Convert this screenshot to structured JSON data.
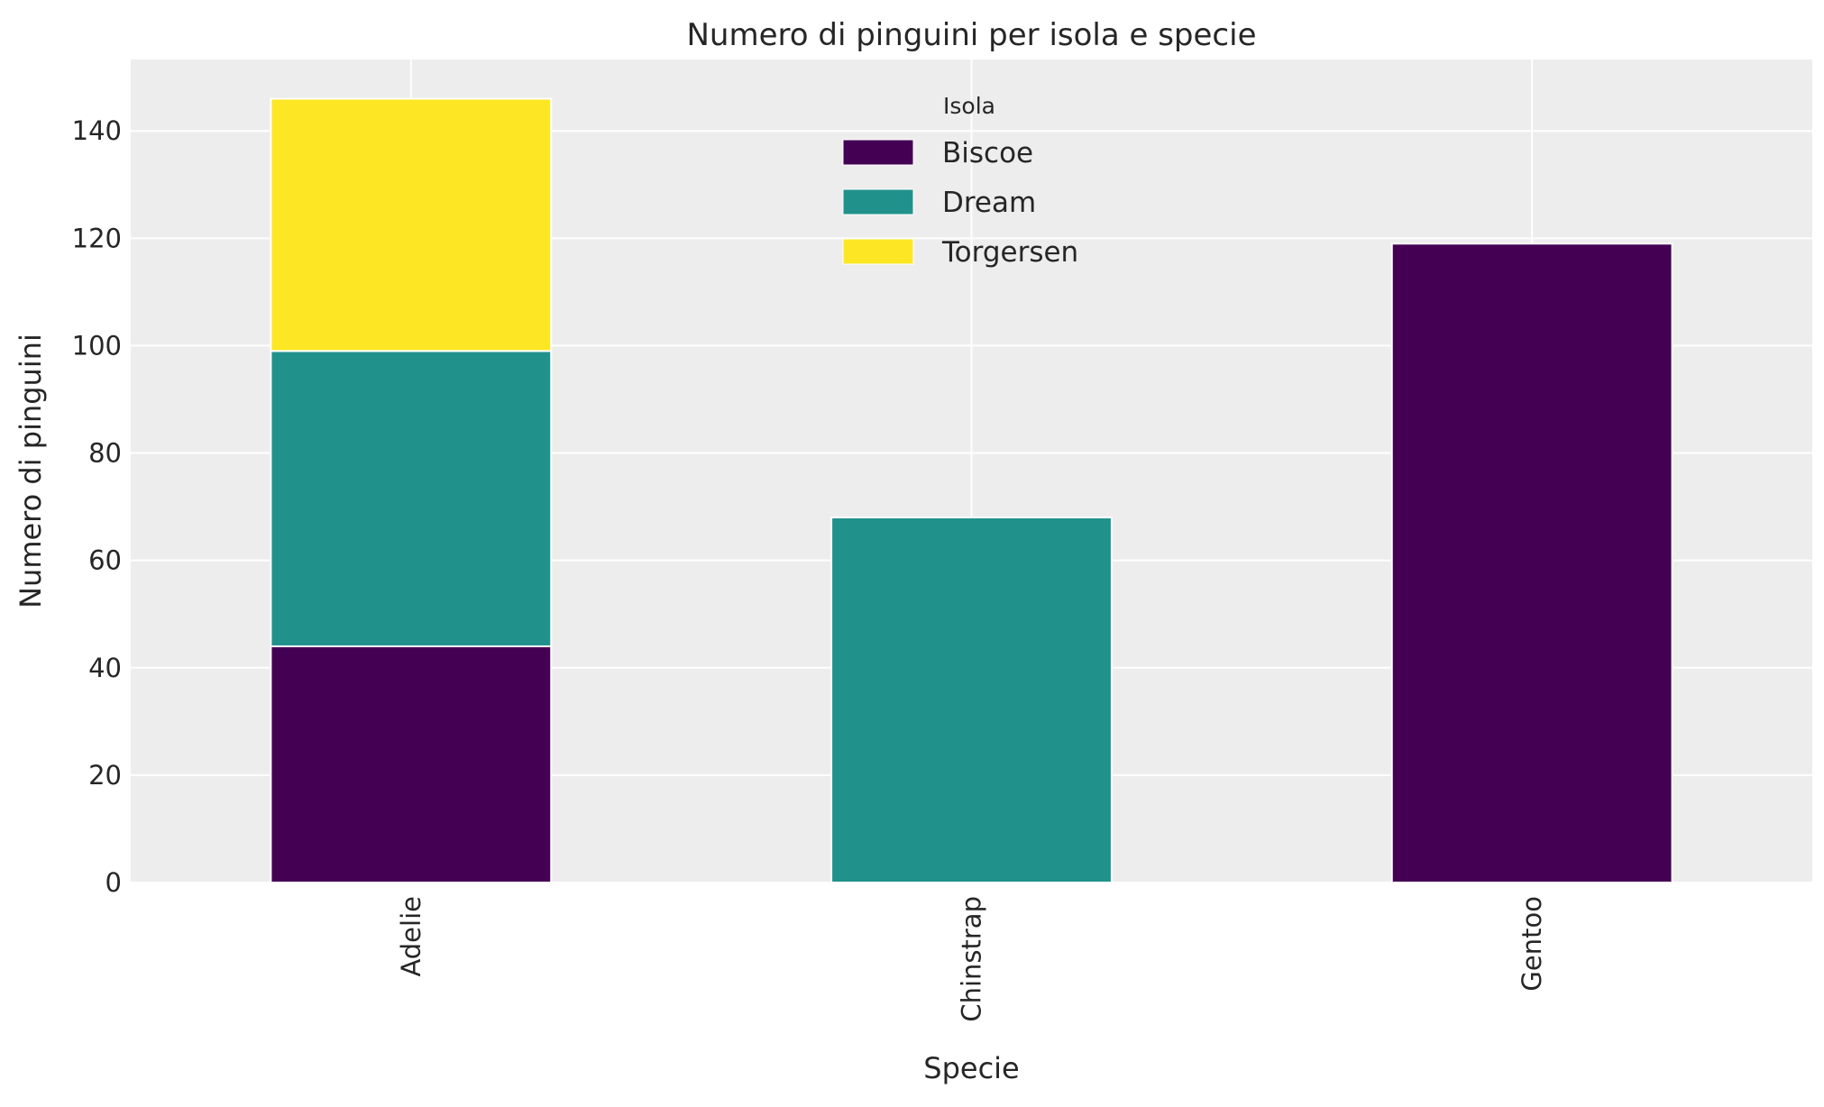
{
  "chart_data": {
    "type": "bar",
    "stacked": true,
    "title": "Numero di pinguini per isola e specie",
    "xlabel": "Specie",
    "ylabel": "Numero di pinguini",
    "categories": [
      "Adelie",
      "Chinstrap",
      "Gentoo"
    ],
    "series": [
      {
        "name": "Biscoe",
        "color": "#440154",
        "values": [
          44,
          0,
          119
        ]
      },
      {
        "name": "Dream",
        "color": "#21918c",
        "values": [
          55,
          68,
          0
        ]
      },
      {
        "name": "Torgersen",
        "color": "#fde725",
        "values": [
          47,
          0,
          0
        ]
      }
    ],
    "ylim": [
      0,
      153.3
    ],
    "yticks": [
      0,
      20,
      40,
      60,
      80,
      100,
      120,
      140
    ],
    "grid": true,
    "legend": {
      "title": "Isola",
      "placement": "upper-center"
    },
    "colors": {
      "background": "#ededed",
      "grid": "#ffffff",
      "bar_edge": "#ffffff"
    }
  }
}
